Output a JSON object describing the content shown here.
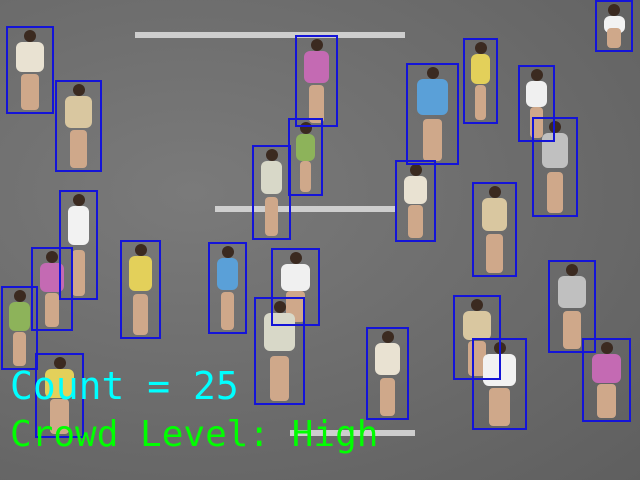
{
  "overlay": {
    "count_text": "Count = 25",
    "crowd_level_text": "Crowd Level: High"
  },
  "colors": {
    "road": "#6f6f6f",
    "crosswalk": "#d8d8d8",
    "bounding_box": "#1414d8",
    "count_text": "#00ffff",
    "crowd_level_text": "#00ff00"
  },
  "detections": {
    "box_count": 25,
    "label": "person"
  }
}
